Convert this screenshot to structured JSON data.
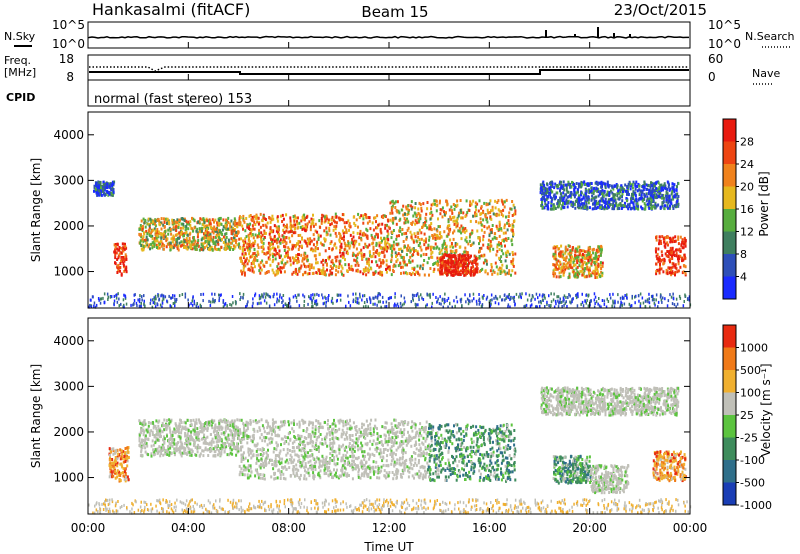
{
  "header": {
    "station": "Hankasalmi (fitACF)",
    "beam": "Beam 15",
    "date": "23/Oct/2015"
  },
  "scan_panel": {
    "left_label": "N.Sky",
    "right_label": "N.Search",
    "left_ticks": [
      "10^5",
      "10^0"
    ],
    "right_ticks": [
      "10^5",
      "10^0"
    ]
  },
  "freq_panel": {
    "left_label_line1": "Freq.",
    "left_label_line2": "[MHz]",
    "left_ticks": [
      "18",
      "8"
    ],
    "right_ticks": [
      "60",
      "0"
    ],
    "right_label": "Nave"
  },
  "cpid": {
    "label": "CPID",
    "text": "normal (fast stereo) 153"
  },
  "chart_data": [
    {
      "type": "heatmap",
      "name": "power",
      "ylabel": "Slant Range [km]",
      "yticks": [
        "4000",
        "3000",
        "2000",
        "1000"
      ],
      "ylim": [
        200,
        4500
      ],
      "colorbar_label": "Power [dB]",
      "colorbar_ticks": [
        "28",
        "24",
        "20",
        "16",
        "12",
        "8",
        "4"
      ],
      "colors": [
        "#1a2bff",
        "#2e4fb8",
        "#3f7f5f",
        "#57ad3e",
        "#e6b81e",
        "#f0821c",
        "#ee4512",
        "#e81a0f"
      ],
      "echo_regions": [
        {
          "t": [
            1.0,
            1.5
          ],
          "r": [
            950,
            1650
          ],
          "level": 0.9
        },
        {
          "t": [
            2.0,
            6.0
          ],
          "r": [
            1500,
            2200
          ],
          "level": 0.55
        },
        {
          "t": [
            6.0,
            12.0
          ],
          "r": [
            950,
            2300
          ],
          "level": 0.7
        },
        {
          "t": [
            12.0,
            17.0
          ],
          "r": [
            950,
            2600
          ],
          "level": 0.6
        },
        {
          "t": [
            14.0,
            15.5
          ],
          "r": [
            950,
            1400
          ],
          "level": 0.95
        },
        {
          "t": [
            0.2,
            1.0
          ],
          "r": [
            2700,
            3000
          ],
          "level": 0.2
        },
        {
          "t": [
            18.5,
            20.5
          ],
          "r": [
            900,
            1600
          ],
          "level": 0.65
        },
        {
          "t": [
            22.6,
            23.8
          ],
          "r": [
            950,
            1800
          ],
          "level": 0.9
        },
        {
          "t": [
            18.0,
            23.5
          ],
          "r": [
            2400,
            3000
          ],
          "level": 0.2
        }
      ]
    },
    {
      "type": "heatmap",
      "name": "velocity",
      "ylabel": "Slant Range [km]",
      "yticks": [
        "4000",
        "3000",
        "2000",
        "1000"
      ],
      "ylim": [
        200,
        4500
      ],
      "colorbar_label": "Velocity [m s⁻¹]",
      "colorbar_ticks": [
        "1000",
        "500",
        "100",
        "25",
        "-25",
        "-100",
        "-500",
        "-1000"
      ],
      "colors": [
        "#1a3eb5",
        "#2f6f8a",
        "#3e8c5c",
        "#5cc43f",
        "#c0c0b8",
        "#f0b030",
        "#f07a18",
        "#e82a10"
      ],
      "echo_regions": [
        {
          "t": [
            0.8,
            1.6
          ],
          "r": [
            950,
            1700
          ],
          "v": "orange"
        },
        {
          "t": [
            2.0,
            6.0
          ],
          "r": [
            1500,
            2300
          ],
          "v": "gray"
        },
        {
          "t": [
            6.0,
            13.5
          ],
          "r": [
            1000,
            2300
          ],
          "v": "gray"
        },
        {
          "t": [
            13.5,
            17.0
          ],
          "r": [
            950,
            2200
          ],
          "v": "green"
        },
        {
          "t": [
            18.5,
            20.0
          ],
          "r": [
            900,
            1500
          ],
          "v": "green"
        },
        {
          "t": [
            20.0,
            21.5
          ],
          "r": [
            700,
            1300
          ],
          "v": "gray"
        },
        {
          "t": [
            22.5,
            23.8
          ],
          "r": [
            950,
            1600
          ],
          "v": "orange"
        },
        {
          "t": [
            18.0,
            23.5
          ],
          "r": [
            2400,
            3000
          ],
          "v": "gray"
        }
      ]
    }
  ],
  "xaxis": {
    "ticks": [
      "00:00",
      "04:00",
      "08:00",
      "12:00",
      "16:00",
      "20:00",
      "00:00"
    ],
    "label": "Time UT",
    "range_hours": [
      0,
      24
    ]
  }
}
